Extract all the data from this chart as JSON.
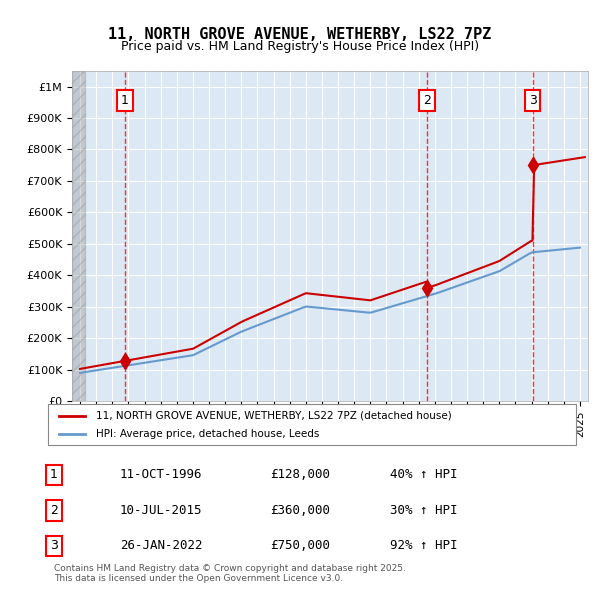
{
  "title": "11, NORTH GROVE AVENUE, WETHERBY, LS22 7PZ",
  "subtitle": "Price paid vs. HM Land Registry's House Price Index (HPI)",
  "xlabel": "",
  "ylabel": "",
  "ylim": [
    0,
    1050000
  ],
  "yticks": [
    0,
    100000,
    200000,
    300000,
    400000,
    500000,
    600000,
    700000,
    800000,
    900000,
    1000000
  ],
  "ytick_labels": [
    "£0",
    "£100K",
    "£200K",
    "£300K",
    "£400K",
    "£500K",
    "£600K",
    "£700K",
    "£800K",
    "£900K",
    "£1M"
  ],
  "xlim_start": 1993.5,
  "xlim_end": 2025.5,
  "sales": [
    {
      "year": 1996.78,
      "price": 128000,
      "label": "1"
    },
    {
      "year": 2015.52,
      "price": 360000,
      "label": "2"
    },
    {
      "year": 2022.07,
      "price": 750000,
      "label": "3"
    }
  ],
  "sale_vline_color": "#ff0000",
  "sale_marker_color": "#cc0000",
  "red_line_color": "#cc0000",
  "blue_line_color": "#6699cc",
  "legend_entries": [
    "11, NORTH GROVE AVENUE, WETHERBY, LS22 7PZ (detached house)",
    "HPI: Average price, detached house, Leeds"
  ],
  "table_rows": [
    [
      "1",
      "11-OCT-1996",
      "£128,000",
      "40% ↑ HPI"
    ],
    [
      "2",
      "10-JUL-2015",
      "£360,000",
      "30% ↑ HPI"
    ],
    [
      "3",
      "26-JAN-2022",
      "£750,000",
      "92% ↑ HPI"
    ]
  ],
  "footer": "Contains HM Land Registry data © Crown copyright and database right 2025.\nThis data is licensed under the Open Government Licence v3.0.",
  "background_color": "#dce9f5",
  "plot_bg_color": "#dce9f5",
  "hatch_color": "#c0c8d8"
}
